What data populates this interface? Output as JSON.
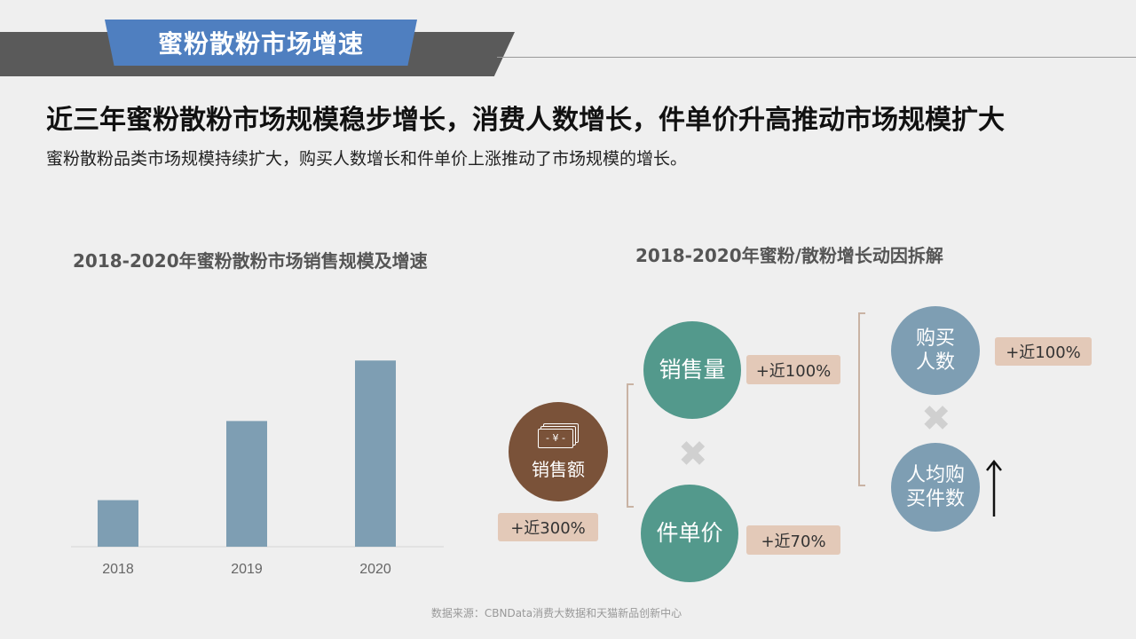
{
  "header": {
    "section_title": "蜜粉散粉市场增速"
  },
  "headline": "近三年蜜粉散粉市场规模稳步增长，消费人数增长，件单价升高推动市场规模扩大",
  "subline": "蜜粉散粉品类市场规模持续扩大，购买人数增长和件单价上涨推动了市场规模的增长。",
  "left_chart": {
    "title": "2018-2020年蜜粉散粉市场销售规模及增速"
  },
  "right_diagram": {
    "title": "2018-2020年蜜粉/散粉增长动因拆解",
    "sales_amount": {
      "label": "销售额",
      "growth": "+近300%",
      "icon": "money-stack-icon",
      "icon_glyph": "- ¥ -",
      "color": "#7a5239"
    },
    "sales_volume": {
      "label": "销售量",
      "growth": "+近100%",
      "color": "#53998c"
    },
    "unit_price": {
      "label": "件单价",
      "growth": "+近70%",
      "color": "#53998c"
    },
    "buyers": {
      "label_line1": "购买",
      "label_line2": "人数",
      "growth": "+近100%",
      "color": "#7e9eb3"
    },
    "per_capita": {
      "label_line1": "人均购",
      "label_line2": "买件数",
      "trend": "up",
      "color": "#7e9eb3"
    },
    "multiply_glyph": "✖"
  },
  "chart_data": {
    "type": "bar",
    "title": "2018-2020年蜜粉散粉市场销售规模及增速",
    "categories": [
      "2018",
      "2019",
      "2020"
    ],
    "values": [
      1,
      2.7,
      4
    ],
    "ylim": [
      0,
      4.5
    ],
    "grid": false,
    "bar_color": "#7e9eb3"
  },
  "footer": {
    "source": "数据来源：CBNData消费大数据和天猫新品创新中心"
  }
}
